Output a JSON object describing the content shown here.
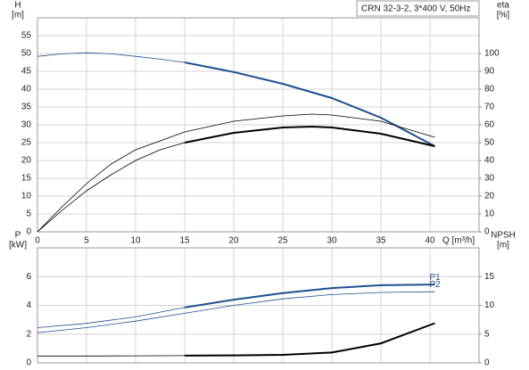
{
  "chart_data": [
    {
      "type": "line",
      "title": "CRN 32-3-2, 3*400 V, 50Hz",
      "xlabel": "Q [m³/h]",
      "ylabel": "H",
      "yunit": "[m]",
      "y2label": "eta",
      "y2unit": "[%]",
      "xlim": [
        0,
        45
      ],
      "xticks": [
        0,
        5,
        10,
        15,
        20,
        25,
        30,
        35,
        40
      ],
      "show_xtick_labels": true,
      "ylim": [
        0,
        60
      ],
      "yticks": [
        0,
        5,
        10,
        15,
        20,
        25,
        30,
        35,
        40,
        45,
        50,
        55
      ],
      "y2lim": [
        0,
        120
      ],
      "y2ticks": [
        0,
        10,
        20,
        30,
        40,
        50,
        60,
        70,
        80,
        90,
        100
      ],
      "grid": true,
      "series": [
        {
          "color": "#1f4f8f",
          "width": 0.8,
          "x": [
            0,
            2.5,
            5,
            7.5,
            10,
            12.5,
            15
          ],
          "values": [
            49.2,
            49.9,
            50.2,
            49.9,
            49.2,
            48.4,
            47.5
          ]
        },
        {
          "color": "#1f4f8f",
          "width": 2,
          "x": [
            15,
            20,
            25,
            30,
            35,
            40.5
          ],
          "values": [
            47.5,
            44.8,
            41.5,
            37.5,
            32,
            24
          ]
        },
        {
          "color": "#000000",
          "width": 0.8,
          "axis": "y2",
          "x": [
            0,
            2.5,
            5,
            7.5,
            10,
            15,
            20,
            25,
            28,
            30,
            35,
            40.5
          ],
          "values": [
            0,
            14,
            27,
            38,
            46,
            56,
            62,
            65,
            66,
            65.5,
            62,
            53
          ]
        },
        {
          "color": "#000000",
          "width": 0.8,
          "axis": "y2",
          "x": [
            0,
            2.5,
            5,
            7.5,
            10,
            12.5,
            15
          ],
          "values": [
            0,
            12,
            23,
            32,
            40,
            46,
            50
          ]
        },
        {
          "color": "#000000",
          "width": 2,
          "axis": "y2",
          "x": [
            15,
            20,
            25,
            28,
            30,
            35,
            40.5
          ],
          "values": [
            50,
            55.5,
            58.5,
            59,
            58.5,
            55,
            48
          ]
        }
      ]
    },
    {
      "type": "line",
      "ylabel": "P",
      "yunit": "[kW]",
      "y2label": "NPSH",
      "y2unit": "[m]",
      "xlim": [
        0,
        45
      ],
      "xticks": [
        0,
        5,
        10,
        15,
        20,
        25,
        30,
        35,
        40
      ],
      "show_xtick_labels": false,
      "ylim": [
        0,
        8
      ],
      "yticks": [
        0,
        2,
        4,
        6
      ],
      "y2lim": [
        0,
        20
      ],
      "y2ticks": [
        0,
        5,
        10,
        15
      ],
      "grid": true,
      "series": [
        {
          "color": "#1f4f8f",
          "width": 0.8,
          "x": [
            0,
            5,
            10,
            15
          ],
          "values": [
            2.45,
            2.75,
            3.2,
            3.85
          ]
        },
        {
          "color": "#1f4f8f",
          "width": 2,
          "x": [
            15,
            20,
            25,
            30,
            35,
            40.5
          ],
          "values": [
            3.85,
            4.4,
            4.85,
            5.2,
            5.4,
            5.45
          ],
          "label": "P1"
        },
        {
          "color": "#1f4f8f",
          "width": 0.8,
          "x": [
            0,
            5,
            10,
            15,
            20,
            25,
            30,
            35,
            40.5
          ],
          "values": [
            2.1,
            2.45,
            2.9,
            3.45,
            4.0,
            4.45,
            4.75,
            4.9,
            4.95
          ],
          "label": "P2"
        },
        {
          "color": "#000000",
          "width": 0.8,
          "axis": "y2",
          "x": [
            0,
            5,
            10,
            15
          ],
          "values": [
            1.2,
            1.2,
            1.22,
            1.25
          ]
        },
        {
          "color": "#000000",
          "width": 2,
          "axis": "y2",
          "x": [
            15,
            20,
            25,
            30,
            35,
            40.5
          ],
          "values": [
            1.25,
            1.3,
            1.4,
            1.8,
            3.4,
            6.9
          ]
        }
      ]
    }
  ]
}
